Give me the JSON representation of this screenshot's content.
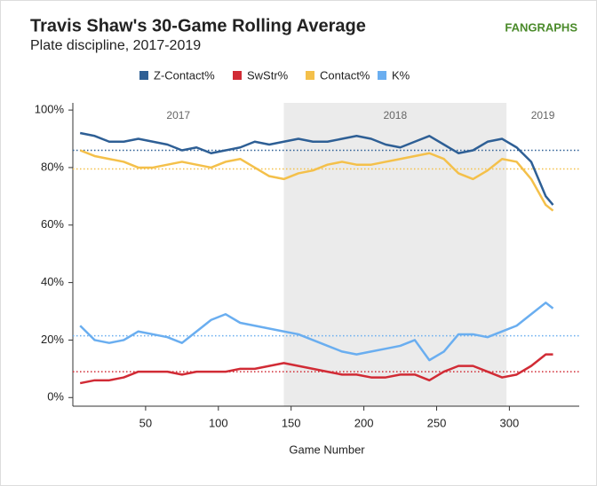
{
  "chart_data": {
    "type": "line",
    "title": "Travis Shaw's 30-Game Rolling Average",
    "subtitle": "Plate discipline, 2017-2019",
    "source": "FANGRAPHS",
    "x_label": "Game Number",
    "xlim": [
      0,
      348
    ],
    "xticks": [
      50,
      100,
      150,
      200,
      250,
      300
    ],
    "ylim": [
      -3,
      102.5
    ],
    "yticks": [
      {
        "value": 0,
        "label": "0%"
      },
      {
        "value": 20,
        "label": "20%"
      },
      {
        "value": 40,
        "label": "40%"
      },
      {
        "value": 60,
        "label": "60%"
      },
      {
        "value": 80,
        "label": "80%"
      },
      {
        "value": 100,
        "label": "100%"
      }
    ],
    "seasons": [
      {
        "label": "2017",
        "start": 0,
        "end": 145,
        "shaded": false
      },
      {
        "label": "2018",
        "start": 145,
        "end": 298,
        "shaded": true
      },
      {
        "label": "2019",
        "start": 298,
        "end": 348,
        "shaded": false
      }
    ],
    "x": [
      5,
      15,
      25,
      35,
      45,
      55,
      65,
      75,
      85,
      95,
      105,
      115,
      125,
      135,
      145,
      155,
      165,
      175,
      185,
      195,
      205,
      215,
      225,
      235,
      245,
      255,
      265,
      275,
      285,
      295,
      305,
      315,
      325,
      330
    ],
    "series": [
      {
        "name": "Z-Contact%",
        "color": "#2e5f95",
        "average": 86,
        "values": [
          92,
          91,
          89,
          89,
          90,
          89,
          88,
          86,
          87,
          85,
          86,
          87,
          89,
          88,
          89,
          90,
          89,
          89,
          90,
          91,
          90,
          88,
          87,
          89,
          91,
          88,
          85,
          86,
          89,
          90,
          87,
          82,
          70,
          67
        ]
      },
      {
        "name": "SwStr%",
        "color": "#d12b35",
        "average": 9,
        "values": [
          5,
          6,
          6,
          7,
          9,
          9,
          9,
          8,
          9,
          9,
          9,
          10,
          10,
          11,
          12,
          11,
          10,
          9,
          8,
          8,
          7,
          7,
          8,
          8,
          6,
          9,
          11,
          11,
          9,
          7,
          8,
          11,
          15,
          15
        ]
      },
      {
        "name": "Contact%",
        "color": "#f4c04a",
        "average": 79.5,
        "values": [
          86,
          84,
          83,
          82,
          80,
          80,
          81,
          82,
          81,
          80,
          82,
          83,
          80,
          77,
          76,
          78,
          79,
          81,
          82,
          81,
          81,
          82,
          83,
          84,
          85,
          83,
          78,
          76,
          79,
          83,
          82,
          76,
          67,
          65
        ]
      },
      {
        "name": "K%",
        "color": "#6aaef0",
        "average": 21.5,
        "values": [
          25,
          20,
          19,
          20,
          23,
          22,
          21,
          19,
          23,
          27,
          29,
          26,
          25,
          24,
          23,
          22,
          20,
          18,
          16,
          15,
          16,
          17,
          18,
          20,
          13,
          16,
          22,
          22,
          21,
          23,
          25,
          29,
          33,
          31
        ]
      }
    ]
  }
}
